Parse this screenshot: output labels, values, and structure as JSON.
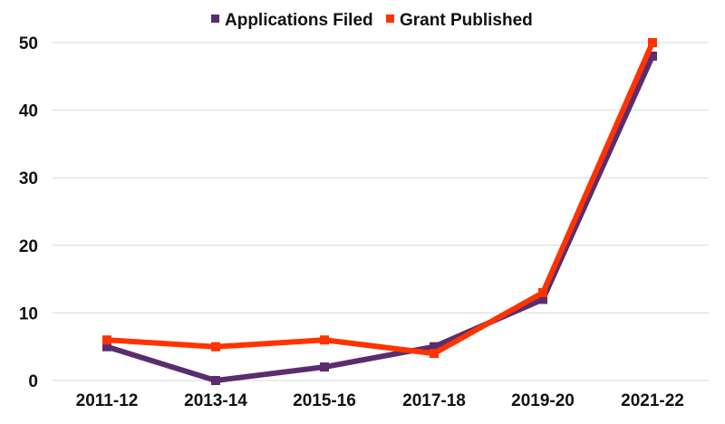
{
  "chart_data": {
    "type": "line",
    "categories": [
      "2011-12",
      "2013-14",
      "2015-16",
      "2017-18",
      "2019-20",
      "2021-22"
    ],
    "series": [
      {
        "name": "Applications Filed",
        "color": "#5b2c6f",
        "values": [
          5,
          0,
          2,
          5,
          12,
          48
        ]
      },
      {
        "name": "Grant Published",
        "color": "#ff3300",
        "values": [
          6,
          5,
          6,
          4,
          13,
          50
        ]
      }
    ],
    "yticks": [
      "0",
      "10",
      "20",
      "30",
      "40",
      "50"
    ],
    "ylim": [
      0,
      50
    ],
    "grid": true,
    "legend_position": "top-center",
    "title": "",
    "xlabel": "",
    "ylabel": ""
  }
}
